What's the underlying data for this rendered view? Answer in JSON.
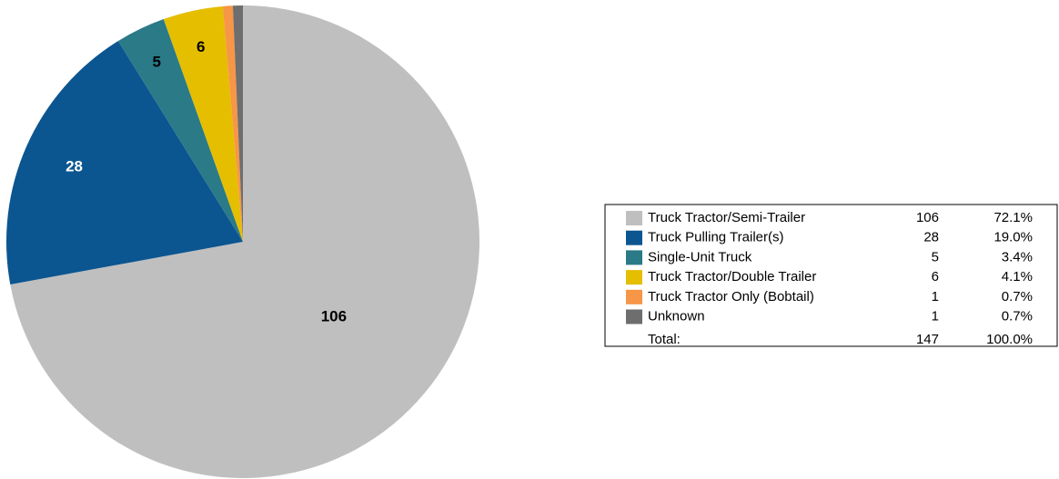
{
  "chart_data": {
    "type": "pie",
    "categories": [
      "Truck Tractor/Semi-Trailer",
      "Truck Pulling Trailer(s)",
      "Single-Unit Truck",
      "Truck Tractor/Double Trailer",
      "Truck Tractor Only (Bobtail)",
      "Unknown"
    ],
    "values": [
      106,
      28,
      5,
      6,
      1,
      1
    ],
    "colors": [
      "#bfbfbf",
      "#0b5590",
      "#2a7a88",
      "#e5be00",
      "#f79646",
      "#6e6e6e"
    ],
    "data_labels_shown": [
      true,
      true,
      true,
      true,
      false,
      false
    ],
    "percent_labels": [
      "72.1%",
      "19.0%",
      "3.4%",
      "4.1%",
      "0.7%",
      "0.7%"
    ],
    "total_label": "Total:",
    "total": 147,
    "total_percent_label": "100.0%",
    "legend": "right"
  }
}
